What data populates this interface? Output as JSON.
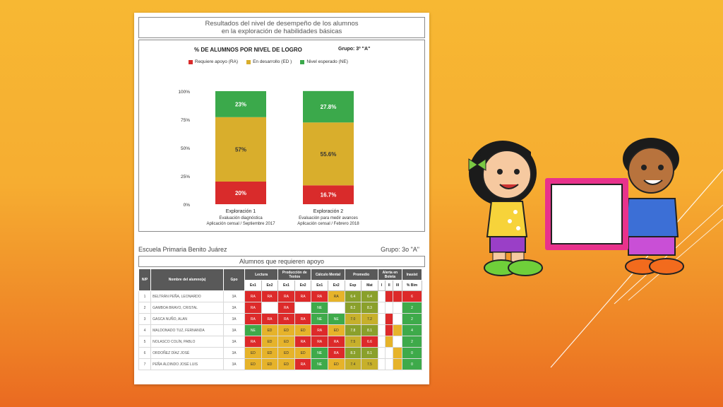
{
  "document": {
    "title_line1": "Resultados del nivel de desempeño de los alumnos",
    "title_line2": "en la exploración de habilidades básicas",
    "school": "Escuela Primaria Benito Juárez",
    "group_label": "Grupo: 3o \"A\"",
    "support_title": "Alumnos que requieren apoyo"
  },
  "chart_data": {
    "type": "bar",
    "stacked": true,
    "title": "% DE ALUMNOS POR NIVEL DE LOGRO",
    "group": "Grupo: 3º \"A\"",
    "categories": [
      "Exploración 1",
      "Exploración 2"
    ],
    "category_sublabels": [
      [
        "Evaluación diagnóstica",
        "Aplicación censal / Septiembre 2017"
      ],
      [
        "Evaluación para medir avances",
        "Aplicación censal / Febrero 2018"
      ]
    ],
    "series": [
      {
        "name": "Requiere apoyo (RA)",
        "color": "#d92b2b",
        "values": [
          20,
          16.7
        ],
        "labels": [
          "20%",
          "16.7%"
        ]
      },
      {
        "name": "En desarrollo (ED )",
        "color": "#d9ae2c",
        "values": [
          57,
          55.6
        ],
        "labels": [
          "57%",
          "55.6%"
        ]
      },
      {
        "name": "Nivel esperado (NE)",
        "color": "#3ba94b",
        "values": [
          23,
          27.8
        ],
        "labels": [
          "23%",
          "27.8%"
        ]
      }
    ],
    "ylim": [
      0,
      100
    ],
    "yticks": [
      "0%",
      "25%",
      "50%",
      "75%",
      "100%"
    ]
  },
  "table": {
    "headers_top": [
      "N/P",
      "Nombre del alumno(a)",
      "Gpo",
      "Lectura",
      "Producción de Textos",
      "Cálculo Mental",
      "Promedio",
      "Alerta en Boleta",
      "Inasist"
    ],
    "headers_sub": [
      "Ex1",
      "Ex2",
      "Ex1",
      "Ex2",
      "Ex1",
      "Ex2",
      "Esp",
      "Mat",
      "I",
      "II",
      "III",
      "% Bim"
    ],
    "rows": [
      {
        "n": "1",
        "name": "BELTRÁN PEÑA, LEONARDO",
        "gpo": "3A",
        "cells": [
          [
            "RA",
            "RA"
          ],
          [
            "RA",
            "RA"
          ],
          [
            "RA",
            "RA"
          ],
          [
            "RA",
            "RA"
          ],
          [
            "RA",
            "RA"
          ],
          [
            "RA",
            "ED"
          ],
          [
            "6.4",
            "dark"
          ],
          [
            "6.4",
            "dark"
          ],
          [
            "",
            "w"
          ],
          [
            "",
            "RA"
          ],
          [
            "",
            "RA"
          ],
          [
            "6",
            "RA"
          ]
        ]
      },
      {
        "n": "2",
        "name": "GAMBOA BRAVO, CRISTAL",
        "gpo": "3A",
        "cells": [
          [
            "RA",
            "RA"
          ],
          [
            "",
            "w"
          ],
          [
            "RA",
            "RA"
          ],
          [
            "",
            "w"
          ],
          [
            "NE",
            "NE"
          ],
          [
            "",
            "w"
          ],
          [
            "8.2",
            "dark"
          ],
          [
            "8.3",
            "dark"
          ],
          [
            "",
            "w"
          ],
          [
            "",
            "w"
          ],
          [
            "",
            "w"
          ],
          [
            "2",
            "NE"
          ]
        ]
      },
      {
        "n": "3",
        "name": "GASCA NUÑO, ALAN",
        "gpo": "3A",
        "cells": [
          [
            "RA",
            "RA"
          ],
          [
            "RA",
            "RA"
          ],
          [
            "RA",
            "RA"
          ],
          [
            "RA",
            "RA"
          ],
          [
            "NE",
            "NE"
          ],
          [
            "NE",
            "NE"
          ],
          [
            "7.0",
            "mid"
          ],
          [
            "7.2",
            "mid"
          ],
          [
            "",
            "w"
          ],
          [
            "",
            "RA"
          ],
          [
            "",
            "w"
          ],
          [
            "2",
            "NE"
          ]
        ]
      },
      {
        "n": "4",
        "name": "MALDONADO TUZ, FERNANDA",
        "gpo": "3A",
        "cells": [
          [
            "NE",
            "NE"
          ],
          [
            "ED",
            "ED"
          ],
          [
            "ED",
            "ED"
          ],
          [
            "ED",
            "ED"
          ],
          [
            "RA",
            "RA"
          ],
          [
            "ED",
            "ED"
          ],
          [
            "7.8",
            "dark"
          ],
          [
            "8.1",
            "dark"
          ],
          [
            "",
            "w"
          ],
          [
            "",
            "RA"
          ],
          [
            "",
            "ED"
          ],
          [
            "4",
            "NE"
          ]
        ]
      },
      {
        "n": "5",
        "name": "NOLASCO COLÍN, PABLO",
        "gpo": "3A",
        "cells": [
          [
            "RA",
            "RA"
          ],
          [
            "ED",
            "ED"
          ],
          [
            "ED",
            "ED"
          ],
          [
            "RA",
            "RA"
          ],
          [
            "RA",
            "RA"
          ],
          [
            "RA",
            "RA"
          ],
          [
            "7.5",
            "mid"
          ],
          [
            "6.6",
            "RA"
          ],
          [
            "",
            "w"
          ],
          [
            "",
            "ED"
          ],
          [
            "",
            "w"
          ],
          [
            "2",
            "NE"
          ]
        ]
      },
      {
        "n": "6",
        "name": "ORDOÑEZ DÍAZ JOSÉ",
        "gpo": "3A",
        "cells": [
          [
            "ED",
            "ED"
          ],
          [
            "ED",
            "ED"
          ],
          [
            "ED",
            "ED"
          ],
          [
            "ED",
            "ED"
          ],
          [
            "NE",
            "NE"
          ],
          [
            "RA",
            "RA"
          ],
          [
            "8.3",
            "dark"
          ],
          [
            "8.1",
            "dark"
          ],
          [
            "",
            "w"
          ],
          [
            "",
            "w"
          ],
          [
            "",
            "ED"
          ],
          [
            "0",
            "NE"
          ]
        ]
      },
      {
        "n": "7",
        "name": "PEÑA ÁLDINDO JOSÉ LUIS",
        "gpo": "3A",
        "cells": [
          [
            "ED",
            "ED"
          ],
          [
            "ED",
            "ED"
          ],
          [
            "ED",
            "ED"
          ],
          [
            "RA",
            "RA"
          ],
          [
            "NE",
            "NE"
          ],
          [
            "ED",
            "ED"
          ],
          [
            "7.4",
            "mid"
          ],
          [
            "7.5",
            "mid"
          ],
          [
            "",
            "w"
          ],
          [
            "",
            "w"
          ],
          [
            "",
            "ED"
          ],
          [
            "0",
            "NE"
          ]
        ]
      }
    ]
  },
  "illustration": {
    "subject": "kids-holding-frame"
  }
}
